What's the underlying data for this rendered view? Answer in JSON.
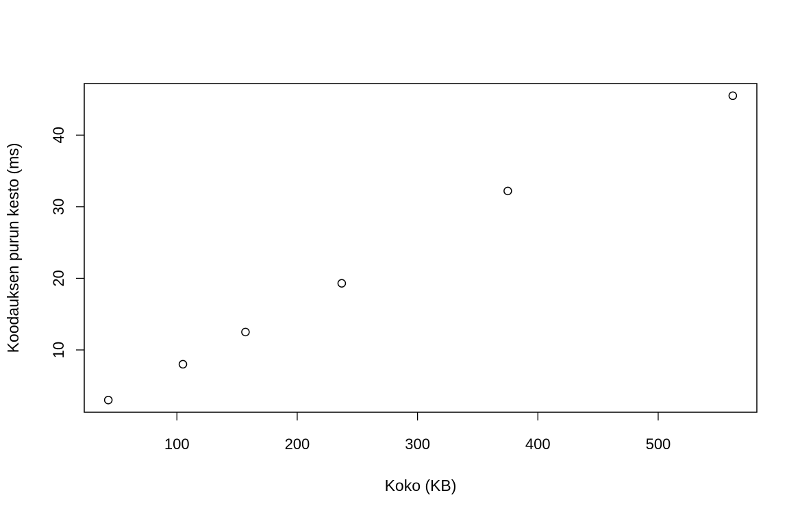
{
  "chart_data": {
    "type": "scatter",
    "title": "",
    "xlabel": "Koko (KB)",
    "ylabel": "Koodauksen purun kesto (ms)",
    "x": [
      43,
      105,
      157,
      237,
      375,
      562
    ],
    "y": [
      3.0,
      8.0,
      12.5,
      19.3,
      32.2,
      45.5
    ],
    "xlim": [
      23,
      582
    ],
    "ylim": [
      1.3,
      47.2
    ],
    "xticks": [
      100,
      200,
      300,
      400,
      500
    ],
    "yticks": [
      10,
      20,
      30,
      40
    ],
    "xtick_labels": [
      "100",
      "200",
      "300",
      "400",
      "500"
    ],
    "ytick_labels": [
      "10",
      "20",
      "30",
      "40"
    ],
    "marker": "open-circle",
    "grid": false,
    "legend": "none",
    "colors": {
      "point": "#000000",
      "axis": "#000000",
      "background": "#ffffff"
    }
  }
}
